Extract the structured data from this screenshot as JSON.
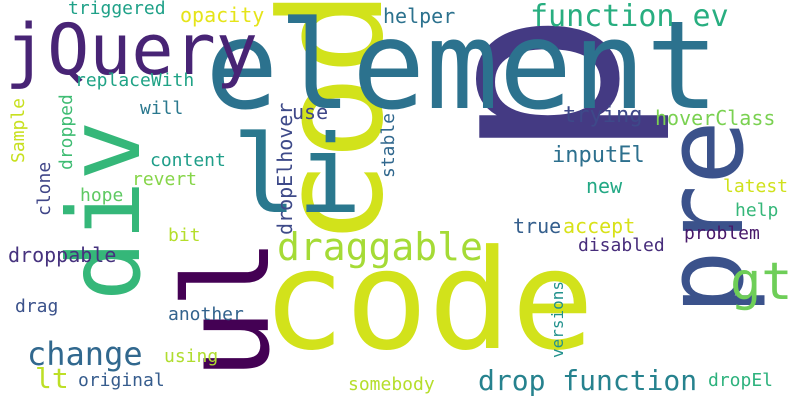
{
  "words": [
    {
      "text": "code",
      "color": "#d2e21b"
    },
    {
      "text": "p",
      "color": "#443a83"
    },
    {
      "text": "element",
      "color": "#2c728e"
    },
    {
      "text": "pre",
      "color": "#3b528b"
    },
    {
      "text": "ul",
      "color": "#440154"
    },
    {
      "text": "div",
      "color": "#35b779"
    },
    {
      "text": "li",
      "color": "#2a788e"
    },
    {
      "text": "jQuery",
      "color": "#482475"
    },
    {
      "text": "draggable",
      "color": "#a5db36"
    },
    {
      "text": "gt",
      "color": "#6ece58"
    },
    {
      "text": "function ev",
      "color": "#28ae80"
    },
    {
      "text": "change",
      "color": "#31688e"
    },
    {
      "text": "drop function",
      "color": "#26828e"
    },
    {
      "text": "lt",
      "color": "#bddf26"
    },
    {
      "text": "dropElhover",
      "color": "#3e4a89"
    },
    {
      "text": "droppable",
      "color": "#46327e"
    },
    {
      "text": "hoverClass",
      "color": "#7ad151"
    },
    {
      "text": "trying",
      "color": "#3e4989"
    },
    {
      "text": "inputEl",
      "color": "#2d708e"
    },
    {
      "text": "new",
      "color": "#22a884"
    },
    {
      "text": "latest",
      "color": "#d0e11c"
    },
    {
      "text": "help",
      "color": "#35b779"
    },
    {
      "text": "accept",
      "color": "#d8e219"
    },
    {
      "text": "true",
      "color": "#355f8d"
    },
    {
      "text": "problem",
      "color": "#48186a"
    },
    {
      "text": "disabled",
      "color": "#472d7b"
    },
    {
      "text": "versions",
      "color": "#21918c"
    },
    {
      "text": "stable",
      "color": "#31688e"
    },
    {
      "text": "use",
      "color": "#3f4788"
    },
    {
      "text": "helper",
      "color": "#2c728e"
    },
    {
      "text": "opacity",
      "color": "#e5e419"
    },
    {
      "text": "triggered",
      "color": "#1fa188"
    },
    {
      "text": "replaceWith",
      "color": "#20a386"
    },
    {
      "text": "will",
      "color": "#2a788e"
    },
    {
      "text": "content",
      "color": "#1f9e89"
    },
    {
      "text": "revert",
      "color": "#86d549"
    },
    {
      "text": "hope",
      "color": "#5ec962"
    },
    {
      "text": "bit",
      "color": "#b5de2b"
    },
    {
      "text": "Sample",
      "color": "#c8e020"
    },
    {
      "text": "dropped",
      "color": "#3fbc73"
    },
    {
      "text": "clone",
      "color": "#404688"
    },
    {
      "text": "drag",
      "color": "#3b528b"
    },
    {
      "text": "another",
      "color": "#33638d"
    },
    {
      "text": "using",
      "color": "#b0dd2f"
    },
    {
      "text": "original",
      "color": "#365c8d"
    },
    {
      "text": "somebody",
      "color": "#b5de2b"
    },
    {
      "text": "dropEl",
      "color": "#2db27d"
    }
  ]
}
